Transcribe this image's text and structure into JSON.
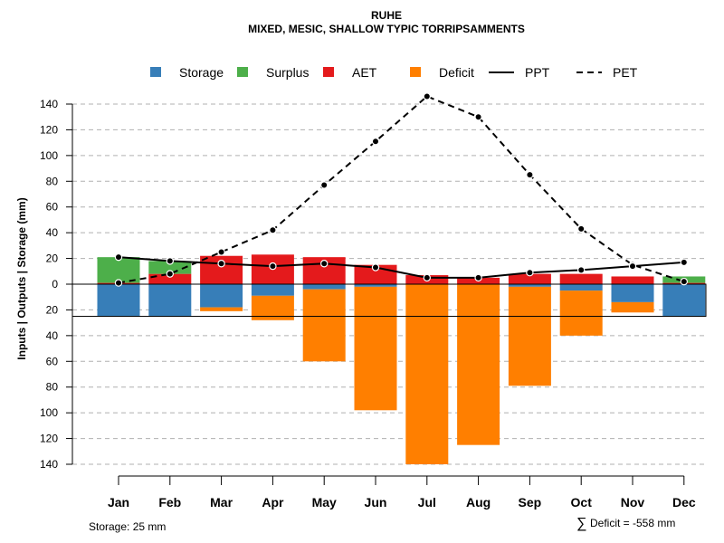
{
  "chart_data": {
    "type": "bar",
    "title": "RUHE",
    "subtitle": "MIXED, MESIC, SHALLOW TYPIC TORRIPSAMMENTS",
    "ylabel": "Inputs | Outputs | Storage    (mm)",
    "xlabel": "",
    "categories": [
      "Jan",
      "Feb",
      "Mar",
      "Apr",
      "May",
      "Jun",
      "Jul",
      "Aug",
      "Sep",
      "Oct",
      "Nov",
      "Dec"
    ],
    "ylim": [
      -140,
      150
    ],
    "yticks": [
      140,
      120,
      100,
      80,
      60,
      40,
      20,
      0,
      -20,
      -40,
      -60,
      -80,
      -100,
      -120,
      -140
    ],
    "ytick_labels": [
      "140",
      "120",
      "100",
      "80",
      "60",
      "40",
      "20",
      "0",
      "20",
      "40",
      "60",
      "80",
      "100",
      "120",
      "140"
    ],
    "grid": true,
    "storage_capacity": 25,
    "series": [
      {
        "name": "Storage",
        "color": "#377EB8",
        "values": [
          -25,
          -25,
          -18,
          -9,
          -4,
          -2,
          0,
          0,
          -2,
          -5,
          -14,
          -25
        ]
      },
      {
        "name": "Surplus",
        "color": "#4DAF4A",
        "values": [
          20,
          10,
          0,
          0,
          0,
          0,
          0,
          0,
          0,
          0,
          0,
          5
        ]
      },
      {
        "name": "AET",
        "color": "#E41A1C",
        "values": [
          1,
          8,
          22,
          23,
          21,
          15,
          7,
          5,
          8,
          8,
          6,
          1
        ]
      },
      {
        "name": "Deficit",
        "color": "#FF7F00",
        "values": [
          0,
          0,
          -3,
          -19,
          -56,
          -96,
          -140,
          -125,
          -77,
          -35,
          -8,
          0
        ]
      },
      {
        "name": "PPT",
        "color": "#000000",
        "style": "solid",
        "values": [
          21,
          18,
          16,
          14,
          16,
          13,
          5,
          5,
          9,
          11,
          14,
          17
        ]
      },
      {
        "name": "PET",
        "color": "#000000",
        "style": "dashed",
        "values": [
          1,
          8,
          25,
          42,
          77,
          111,
          146,
          130,
          85,
          43,
          15,
          2
        ]
      }
    ],
    "legend": [
      "Storage",
      "Surplus",
      "AET",
      "Deficit",
      "PPT",
      "PET"
    ],
    "legend_placement": "top",
    "annotations": {
      "storage_note": "Storage: 25 mm",
      "deficit_symbol": "∑",
      "deficit_note": "Deficit = -558 mm"
    }
  }
}
